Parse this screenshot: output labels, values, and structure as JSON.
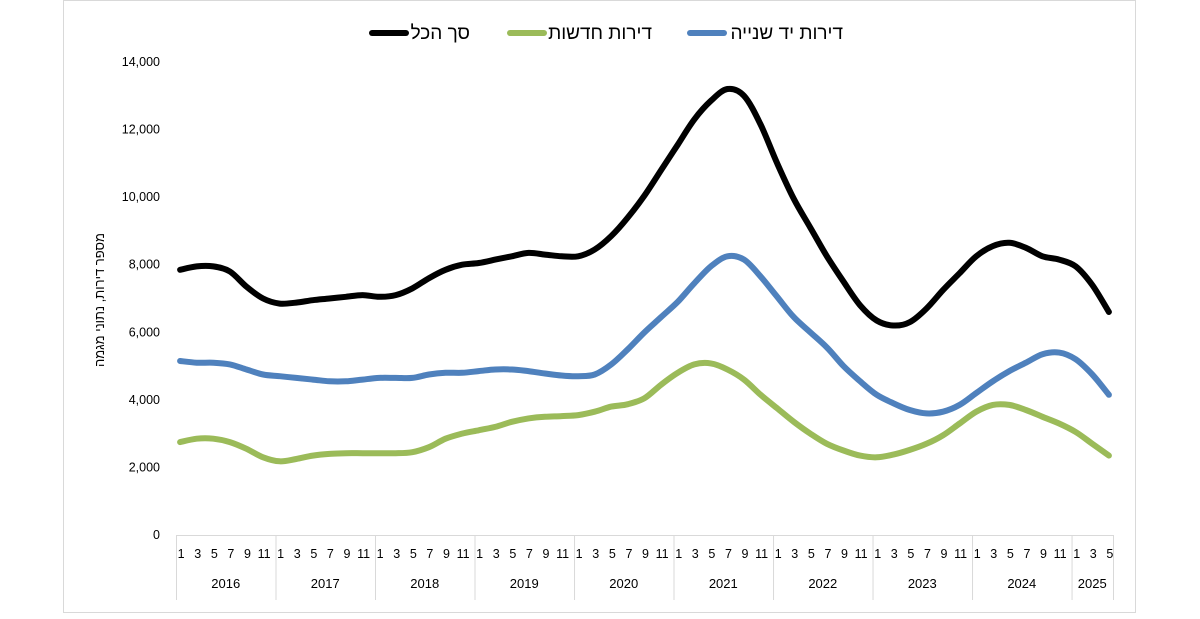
{
  "chart_data": {
    "type": "line",
    "title": "",
    "ylabel": "מספר דירות, נתוני מגמה",
    "xlabel": "",
    "ylim": [
      0,
      14000
    ],
    "yticks": [
      0,
      2000,
      4000,
      6000,
      8000,
      10000,
      12000,
      14000
    ],
    "ytick_labels": [
      "0",
      "2,000",
      "4,000",
      "6,000",
      "8,000",
      "10,000",
      "12,000",
      "14,000"
    ],
    "grid": false,
    "legend_position": "top",
    "years": [
      {
        "label": "2016",
        "months": [
          "1",
          "3",
          "5",
          "7",
          "9",
          "11"
        ]
      },
      {
        "label": "2017",
        "months": [
          "1",
          "3",
          "5",
          "7",
          "9",
          "11"
        ]
      },
      {
        "label": "2018",
        "months": [
          "1",
          "3",
          "5",
          "7",
          "9",
          "11"
        ]
      },
      {
        "label": "2019",
        "months": [
          "1",
          "3",
          "5",
          "7",
          "9",
          "11"
        ]
      },
      {
        "label": "2020",
        "months": [
          "1",
          "3",
          "5",
          "7",
          "9",
          "11"
        ]
      },
      {
        "label": "2021",
        "months": [
          "1",
          "3",
          "5",
          "7",
          "9",
          "11"
        ]
      },
      {
        "label": "2022",
        "months": [
          "1",
          "3",
          "5",
          "7",
          "9",
          "11"
        ]
      },
      {
        "label": "2023",
        "months": [
          "1",
          "3",
          "5",
          "7",
          "9",
          "11"
        ]
      },
      {
        "label": "2024",
        "months": [
          "1",
          "3",
          "5",
          "7",
          "9",
          "11"
        ]
      },
      {
        "label": "2025",
        "months": [
          "1",
          "3",
          "5"
        ]
      }
    ],
    "x_start": "2016-01",
    "x_end": "2025-06",
    "series": [
      {
        "name": "סך הכל",
        "color": "#000000",
        "points": [
          [
            "2016-01",
            7850
          ],
          [
            "2016-03",
            7950
          ],
          [
            "2016-05",
            7950
          ],
          [
            "2016-07",
            7800
          ],
          [
            "2016-09",
            7350
          ],
          [
            "2016-11",
            7000
          ],
          [
            "2017-01",
            6850
          ],
          [
            "2017-03",
            6880
          ],
          [
            "2017-05",
            6950
          ],
          [
            "2017-07",
            7000
          ],
          [
            "2017-09",
            7050
          ],
          [
            "2017-11",
            7100
          ],
          [
            "2018-01",
            7050
          ],
          [
            "2018-03",
            7100
          ],
          [
            "2018-05",
            7300
          ],
          [
            "2018-07",
            7600
          ],
          [
            "2018-09",
            7850
          ],
          [
            "2018-11",
            8000
          ],
          [
            "2019-01",
            8050
          ],
          [
            "2019-03",
            8150
          ],
          [
            "2019-05",
            8250
          ],
          [
            "2019-07",
            8350
          ],
          [
            "2019-09",
            8300
          ],
          [
            "2019-11",
            8250
          ],
          [
            "2020-01",
            8250
          ],
          [
            "2020-03",
            8450
          ],
          [
            "2020-05",
            8850
          ],
          [
            "2020-07",
            9400
          ],
          [
            "2020-09",
            10050
          ],
          [
            "2020-11",
            10800
          ],
          [
            "2021-01",
            11550
          ],
          [
            "2021-03",
            12300
          ],
          [
            "2021-05",
            12850
          ],
          [
            "2021-07",
            13200
          ],
          [
            "2021-09",
            13000
          ],
          [
            "2021-11",
            12150
          ],
          [
            "2022-01",
            11000
          ],
          [
            "2022-03",
            9950
          ],
          [
            "2022-05",
            9100
          ],
          [
            "2022-07",
            8250
          ],
          [
            "2022-09",
            7500
          ],
          [
            "2022-11",
            6800
          ],
          [
            "2023-01",
            6350
          ],
          [
            "2023-03",
            6200
          ],
          [
            "2023-05",
            6300
          ],
          [
            "2023-07",
            6700
          ],
          [
            "2023-09",
            7250
          ],
          [
            "2023-11",
            7750
          ],
          [
            "2024-01",
            8250
          ],
          [
            "2024-03",
            8550
          ],
          [
            "2024-05",
            8650
          ],
          [
            "2024-07",
            8500
          ],
          [
            "2024-09",
            8250
          ],
          [
            "2024-11",
            8150
          ],
          [
            "2025-01",
            7950
          ],
          [
            "2025-03",
            7400
          ],
          [
            "2025-05",
            6600
          ]
        ]
      },
      {
        "name": "דירות חדשות",
        "color": "#9bbb59",
        "points": [
          [
            "2016-01",
            2750
          ],
          [
            "2016-03",
            2850
          ],
          [
            "2016-05",
            2850
          ],
          [
            "2016-07",
            2750
          ],
          [
            "2016-09",
            2550
          ],
          [
            "2016-11",
            2300
          ],
          [
            "2017-01",
            2180
          ],
          [
            "2017-03",
            2250
          ],
          [
            "2017-05",
            2350
          ],
          [
            "2017-07",
            2400
          ],
          [
            "2017-09",
            2420
          ],
          [
            "2017-11",
            2420
          ],
          [
            "2018-01",
            2420
          ],
          [
            "2018-03",
            2420
          ],
          [
            "2018-05",
            2450
          ],
          [
            "2018-07",
            2600
          ],
          [
            "2018-09",
            2850
          ],
          [
            "2018-11",
            3000
          ],
          [
            "2019-01",
            3100
          ],
          [
            "2019-03",
            3200
          ],
          [
            "2019-05",
            3350
          ],
          [
            "2019-07",
            3450
          ],
          [
            "2019-09",
            3500
          ],
          [
            "2019-11",
            3520
          ],
          [
            "2020-01",
            3550
          ],
          [
            "2020-03",
            3650
          ],
          [
            "2020-05",
            3800
          ],
          [
            "2020-07",
            3870
          ],
          [
            "2020-09",
            4050
          ],
          [
            "2020-11",
            4450
          ],
          [
            "2021-01",
            4800
          ],
          [
            "2021-03",
            5050
          ],
          [
            "2021-05",
            5080
          ],
          [
            "2021-07",
            4900
          ],
          [
            "2021-09",
            4600
          ],
          [
            "2021-11",
            4150
          ],
          [
            "2022-01",
            3750
          ],
          [
            "2022-03",
            3350
          ],
          [
            "2022-05",
            3000
          ],
          [
            "2022-07",
            2700
          ],
          [
            "2022-09",
            2500
          ],
          [
            "2022-11",
            2350
          ],
          [
            "2023-01",
            2300
          ],
          [
            "2023-03",
            2380
          ],
          [
            "2023-05",
            2520
          ],
          [
            "2023-07",
            2700
          ],
          [
            "2023-09",
            2950
          ],
          [
            "2023-11",
            3300
          ],
          [
            "2024-01",
            3650
          ],
          [
            "2024-03",
            3850
          ],
          [
            "2024-05",
            3850
          ],
          [
            "2024-07",
            3700
          ],
          [
            "2024-09",
            3500
          ],
          [
            "2024-11",
            3300
          ],
          [
            "2025-01",
            3050
          ],
          [
            "2025-03",
            2700
          ],
          [
            "2025-05",
            2350
          ]
        ]
      },
      {
        "name": "דירות יד שנייה",
        "color": "#4f81bd",
        "points": [
          [
            "2016-01",
            5150
          ],
          [
            "2016-03",
            5100
          ],
          [
            "2016-05",
            5100
          ],
          [
            "2016-07",
            5050
          ],
          [
            "2016-09",
            4900
          ],
          [
            "2016-11",
            4750
          ],
          [
            "2017-01",
            4700
          ],
          [
            "2017-03",
            4650
          ],
          [
            "2017-05",
            4600
          ],
          [
            "2017-07",
            4550
          ],
          [
            "2017-09",
            4550
          ],
          [
            "2017-11",
            4600
          ],
          [
            "2018-01",
            4650
          ],
          [
            "2018-03",
            4650
          ],
          [
            "2018-05",
            4650
          ],
          [
            "2018-07",
            4750
          ],
          [
            "2018-09",
            4800
          ],
          [
            "2018-11",
            4800
          ],
          [
            "2019-01",
            4850
          ],
          [
            "2019-03",
            4900
          ],
          [
            "2019-05",
            4900
          ],
          [
            "2019-07",
            4850
          ],
          [
            "2019-09",
            4780
          ],
          [
            "2019-11",
            4720
          ],
          [
            "2020-01",
            4700
          ],
          [
            "2020-03",
            4750
          ],
          [
            "2020-05",
            5050
          ],
          [
            "2020-07",
            5500
          ],
          [
            "2020-09",
            6000
          ],
          [
            "2020-11",
            6450
          ],
          [
            "2021-01",
            6900
          ],
          [
            "2021-03",
            7450
          ],
          [
            "2021-05",
            7950
          ],
          [
            "2021-07",
            8250
          ],
          [
            "2021-09",
            8150
          ],
          [
            "2021-11",
            7650
          ],
          [
            "2022-01",
            7050
          ],
          [
            "2022-03",
            6450
          ],
          [
            "2022-05",
            6000
          ],
          [
            "2022-07",
            5550
          ],
          [
            "2022-09",
            5000
          ],
          [
            "2022-11",
            4550
          ],
          [
            "2023-01",
            4150
          ],
          [
            "2023-03",
            3900
          ],
          [
            "2023-05",
            3700
          ],
          [
            "2023-07",
            3600
          ],
          [
            "2023-09",
            3650
          ],
          [
            "2023-11",
            3850
          ],
          [
            "2024-01",
            4200
          ],
          [
            "2024-03",
            4550
          ],
          [
            "2024-05",
            4850
          ],
          [
            "2024-07",
            5100
          ],
          [
            "2024-09",
            5350
          ],
          [
            "2024-11",
            5400
          ],
          [
            "2025-01",
            5200
          ],
          [
            "2025-03",
            4750
          ],
          [
            "2025-05",
            4150
          ]
        ]
      }
    ]
  }
}
